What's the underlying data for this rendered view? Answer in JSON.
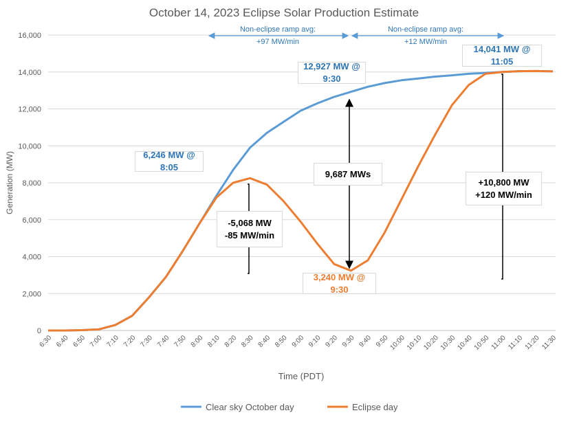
{
  "chart_data": {
    "type": "line",
    "title": "October 14, 2023 Eclipse Solar Production Estimate",
    "xlabel": "Time (PDT)",
    "ylabel": "Generation (MW)",
    "ylim": [
      0,
      16000
    ],
    "yticks": [
      "0",
      "2,000",
      "4,000",
      "6,000",
      "8,000",
      "10,000",
      "12,000",
      "14,000",
      "16,000"
    ],
    "grid": true,
    "legend": "bottom",
    "categories": [
      "6:30",
      "6:40",
      "6:50",
      "7:00",
      "7:10",
      "7:20",
      "7:30",
      "7:40",
      "7:50",
      "8:00",
      "8:10",
      "8:20",
      "8:30",
      "8:40",
      "8:50",
      "9:00",
      "9:10",
      "9:20",
      "9:30",
      "9:40",
      "9:50",
      "10:00",
      "10:10",
      "10:20",
      "10:30",
      "10:40",
      "10:50",
      "11:00",
      "11:10",
      "11:20",
      "11:30"
    ],
    "series": [
      {
        "name": "Clear sky October day",
        "color": "#5b9bd5",
        "values": [
          0,
          0,
          20,
          60,
          300,
          800,
          1800,
          2900,
          4300,
          5800,
          7300,
          8700,
          9900,
          10700,
          11300,
          11900,
          12300,
          12650,
          12927,
          13200,
          13400,
          13550,
          13650,
          13750,
          13820,
          13900,
          13950,
          14000,
          14041,
          14050,
          14030
        ]
      },
      {
        "name": "Eclipse day",
        "color": "#ed7d31",
        "values": [
          0,
          0,
          20,
          60,
          300,
          800,
          1800,
          2900,
          4300,
          5800,
          7200,
          8000,
          8250,
          7900,
          7000,
          5900,
          4700,
          3600,
          3240,
          3800,
          5300,
          7100,
          8900,
          10600,
          12200,
          13300,
          13900,
          14000,
          14041,
          14050,
          14030
        ]
      }
    ],
    "annotations": {
      "ramp1": {
        "line1": "Non-eclipse ramp avg:",
        "line2": "+97 MW/min"
      },
      "ramp2": {
        "line1": "Non-eclipse ramp avg:",
        "line2": "+12 MW/min"
      },
      "peak_clear": "14,041 MW @ 11:05",
      "clear_930": "12,927 MW @ 9:30",
      "clear_805": "6,246 MW @ 8:05",
      "gap": "9,687 MWs",
      "drop": {
        "line1": "-5,068 MW",
        "line2": "-85 MW/min"
      },
      "eclipse_930": "3,240 MW @ 9:30",
      "recovery": {
        "line1": "+10,800 MW",
        "line2": "+120 MW/min"
      }
    }
  }
}
